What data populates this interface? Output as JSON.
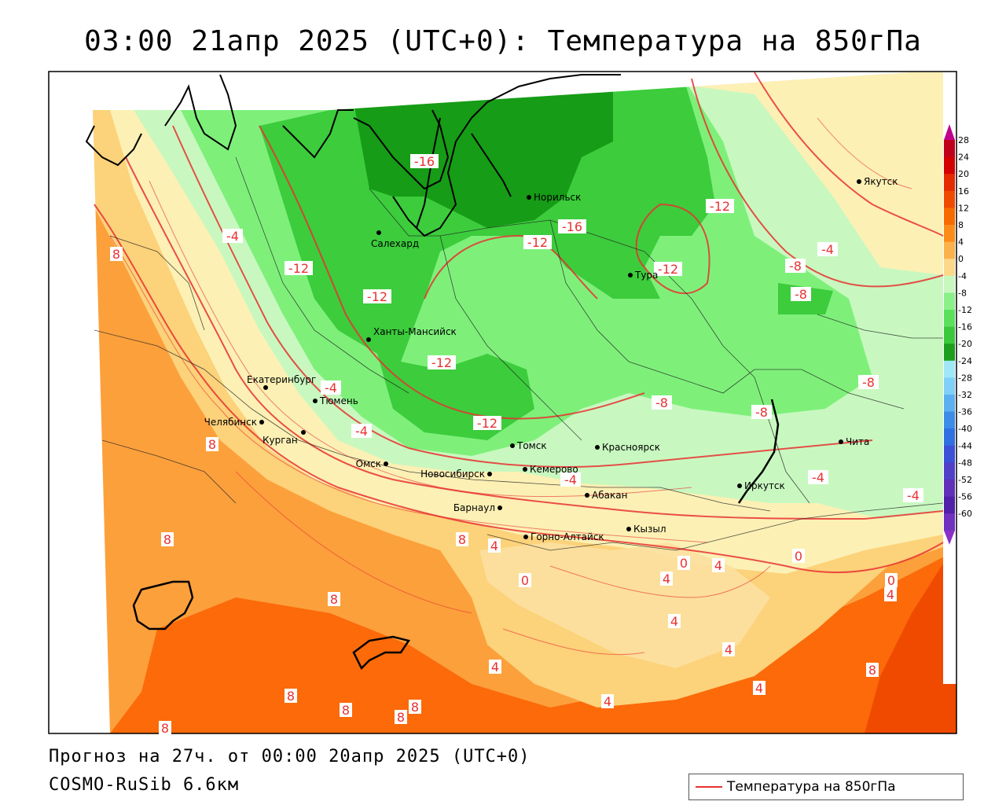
{
  "title": "03:00 21апр 2025 (UTC+0): Температура на 850гПа",
  "footer": {
    "forecast": "Прогноз на 27ч. от 00:00 20апр 2025 (UTC+0)",
    "model": "COSMO-RuSib 6.6км"
  },
  "legend": {
    "label": "Температура на 850гПа",
    "line_color": "#e83232"
  },
  "colorbar": {
    "ticks": [
      "28",
      "24",
      "20",
      "16",
      "12",
      "8",
      "4",
      "0",
      "-4",
      "-8",
      "-12",
      "-16",
      "-20",
      "-24",
      "-28",
      "-32",
      "-36",
      "-40",
      "-44",
      "-48",
      "-52",
      "-56",
      "-60"
    ],
    "colors": [
      "#c0001a",
      "#d40000",
      "#e62a00",
      "#f04a00",
      "#f86a00",
      "#fc8c1a",
      "#fcb24a",
      "#fcd88a",
      "#c8f8c0",
      "#8cf088",
      "#5ce05c",
      "#3cc83c",
      "#1e9e1e",
      "#a0e8f8",
      "#80d0f8",
      "#5cb0f0",
      "#3c8ce8",
      "#3070e0",
      "#3c50d8",
      "#5040c8",
      "#6030b8",
      "#5020a8",
      "#7030c0"
    ]
  },
  "cities": [
    {
      "name": "Якутск"
    },
    {
      "name": "Норильск"
    },
    {
      "name": "Салехард"
    },
    {
      "name": "Тура"
    },
    {
      "name": "Ханты-Мансийск"
    },
    {
      "name": "Екатеринбург"
    },
    {
      "name": "Тюмень"
    },
    {
      "name": "Челябинск"
    },
    {
      "name": "Курган"
    },
    {
      "name": "Омск"
    },
    {
      "name": "Новосибирск"
    },
    {
      "name": "Томск"
    },
    {
      "name": "Кемерово"
    },
    {
      "name": "Красноярск"
    },
    {
      "name": "Абакан"
    },
    {
      "name": "Барнаул"
    },
    {
      "name": "Горно-Алтайск"
    },
    {
      "name": "Кызыл"
    },
    {
      "name": "Иркутск"
    },
    {
      "name": "Чита"
    }
  ],
  "contour_labels": [
    "-16",
    "-16",
    "-12",
    "-12",
    "-12",
    "-12",
    "-12",
    "-12",
    "-12",
    "-8",
    "-8",
    "-8",
    "-8",
    "-8",
    "-4",
    "-4",
    "-4",
    "-4",
    "-4",
    "-4",
    "-4",
    "0",
    "0",
    "0",
    "0",
    "4",
    "4",
    "4",
    "4",
    "4",
    "4",
    "4",
    "4",
    "4",
    "8",
    "8",
    "8",
    "8",
    "8",
    "8",
    "8",
    "8",
    "8",
    "8",
    "8"
  ]
}
